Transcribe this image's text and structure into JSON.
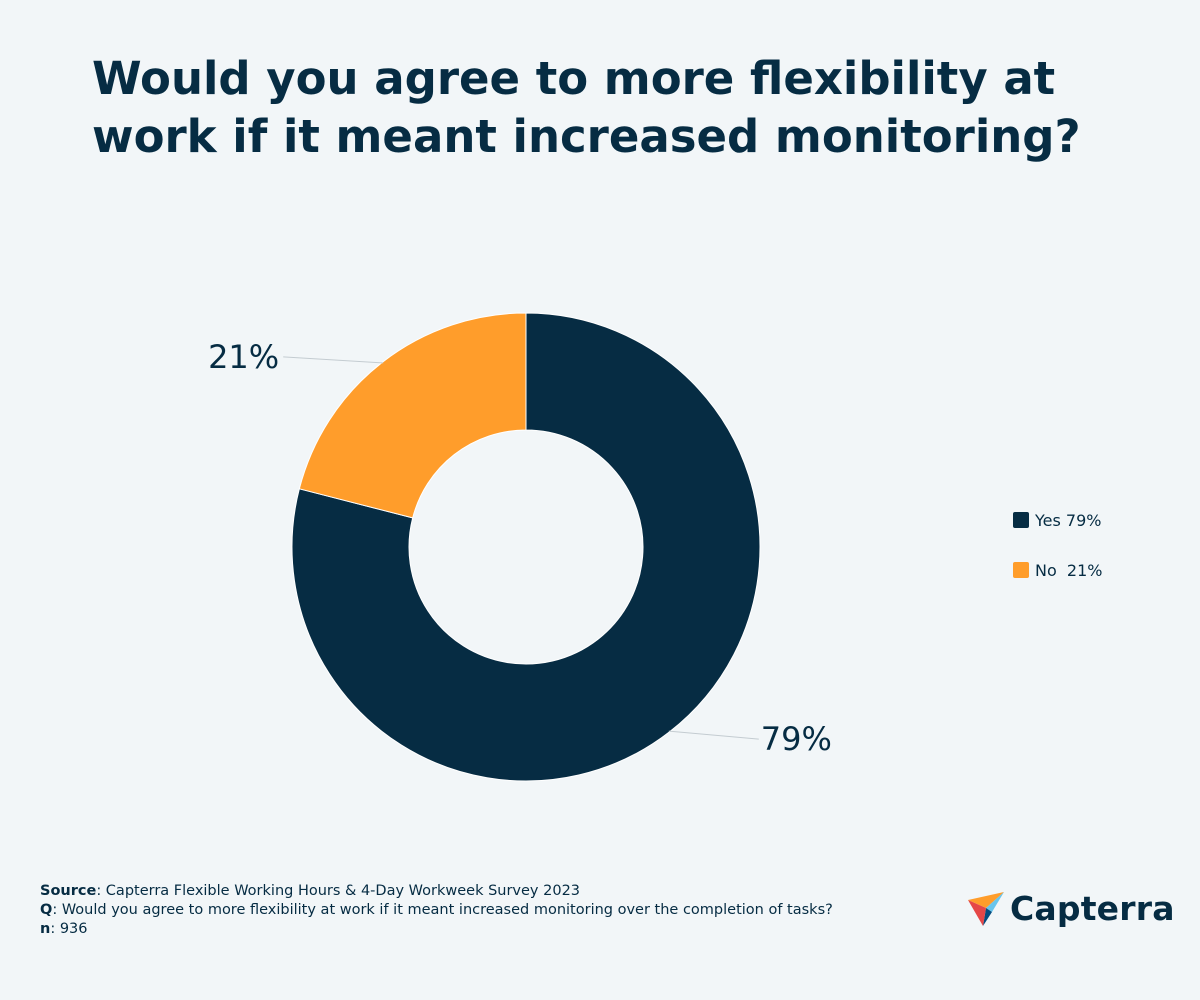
{
  "title": "Would you agree to more flexibility at work if it meant increased monitoring?",
  "chart_data": {
    "type": "pie",
    "variant": "donut",
    "title": "Would you agree to more flexibility at work if it meant increased monitoring?",
    "slices": [
      {
        "label": "Yes",
        "value": 79,
        "display": "79%",
        "legend": "Yes 79%",
        "color": "#062c43"
      },
      {
        "label": "No",
        "value": 21,
        "display": "21%",
        "legend": "No  21%",
        "color": "#ff9d2b"
      }
    ],
    "legend_position": "right"
  },
  "footer": {
    "source_label": "Source",
    "source_text": ": Capterra Flexible Working Hours & 4-Day Workweek Survey 2023",
    "q_label": "Q",
    "q_text": ": Would you agree to more flexibility at work if it meant increased monitoring over the completion of tasks?",
    "n_label": "n",
    "n_text": ": 936"
  },
  "logo": {
    "text": "Capterra"
  }
}
